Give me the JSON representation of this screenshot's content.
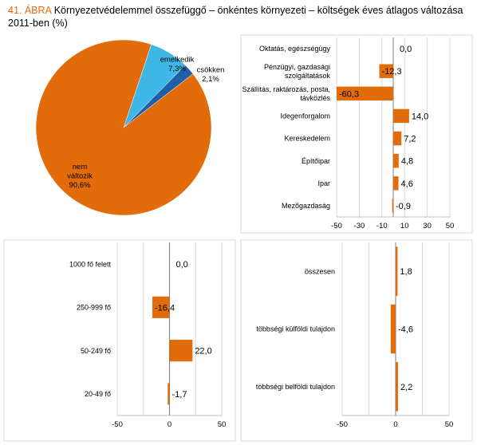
{
  "figure": {
    "number": "41. ÁBRA",
    "title": "Környezetvédelemmel összefüggő – önkéntes környezeti – költségek éves átlagos változása 2011-ben",
    "unit": "(%)"
  },
  "colors": {
    "orange": "#E36C0A",
    "light_blue": "#3FB7E6",
    "dark_blue": "#1F5FA8",
    "grid": "#D9D9D9"
  },
  "chart_data": [
    {
      "type": "pie",
      "slices": [
        {
          "label_lines": [
            "nem",
            "változik"
          ],
          "value": 90.6,
          "value_label": "90,6%",
          "color": "#E36C0A"
        },
        {
          "label_lines": [
            "emelkedik"
          ],
          "value": 7.3,
          "value_label": "7,3%",
          "color": "#3FB7E6"
        },
        {
          "label_lines": [
            "csökken"
          ],
          "value": 2.1,
          "value_label": "2,1%",
          "color": "#1F5FA8"
        }
      ]
    },
    {
      "type": "bar",
      "orientation": "horizontal",
      "categories": [
        [
          "Oktatás, egészségügy"
        ],
        [
          "Pénzügyi, gazdasági",
          "szolgáltatások"
        ],
        [
          "Szállítás, raktározás, posta,",
          "távközlés"
        ],
        [
          "Idegenforgalom"
        ],
        [
          "Kereskedelem"
        ],
        [
          "Építőipar"
        ],
        [
          "Ipar"
        ],
        [
          "Mezőgazdaság"
        ]
      ],
      "values": [
        0.0,
        -12.3,
        -60.3,
        14.0,
        7.2,
        4.8,
        4.6,
        -0.9
      ],
      "value_labels": [
        "0,0",
        "-12,3",
        "-60,3",
        "14,0",
        "7,2",
        "4,8",
        "4,6",
        "-0,9"
      ],
      "xlim": [
        -50,
        50
      ],
      "xticks": [
        -50,
        -30,
        -10,
        10,
        30,
        50
      ],
      "xtick_labels": [
        "-50",
        "-30",
        "-10",
        "10",
        "30",
        "50"
      ],
      "grid": true
    },
    {
      "type": "bar",
      "orientation": "horizontal",
      "categories": [
        [
          "1000 fő felett"
        ],
        [
          "250-999 fő"
        ],
        [
          "50-249 fő"
        ],
        [
          "20-49 fő"
        ]
      ],
      "values": [
        0.0,
        -16.4,
        22.0,
        -1.7
      ],
      "value_labels": [
        "0,0",
        "-16,4",
        "22,0",
        "-1,7"
      ],
      "xlim": [
        -50,
        50
      ],
      "xticks": [
        -50,
        0,
        50
      ],
      "xtick_labels": [
        "-50",
        "0",
        "50"
      ],
      "grid": true
    },
    {
      "type": "bar",
      "orientation": "horizontal",
      "categories": [
        [
          "összesen"
        ],
        [
          "többségi külföldi tulajdon"
        ],
        [
          "többségi belföldi tulajdon"
        ]
      ],
      "values": [
        1.8,
        -4.6,
        2.2
      ],
      "value_labels": [
        "1,8",
        "-4,6",
        "2,2"
      ],
      "xlim": [
        -50,
        50
      ],
      "xticks": [
        -50,
        0,
        50
      ],
      "xtick_labels": [
        "-50",
        "0",
        "50"
      ],
      "grid": true
    }
  ]
}
